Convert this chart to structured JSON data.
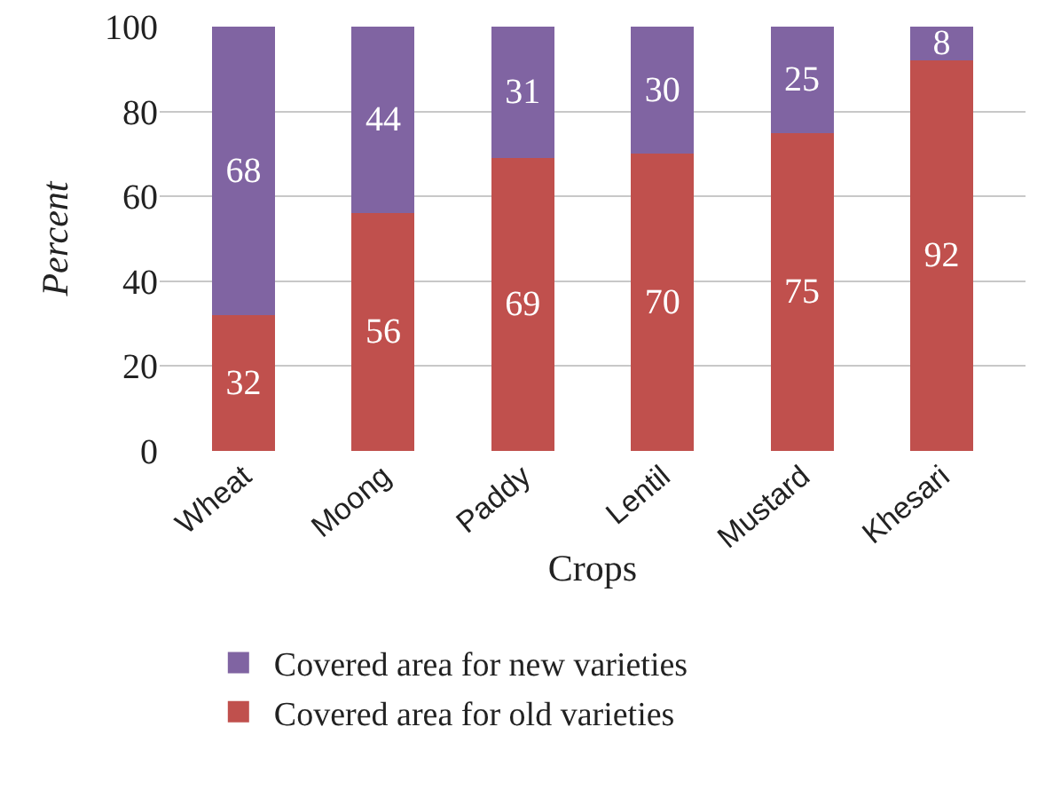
{
  "chart_data": {
    "type": "bar",
    "stacked": true,
    "xlabel": "Crops",
    "ylabel": "Percent",
    "categories": [
      "Wheat",
      "Moong",
      "Paddy",
      "Lentil",
      "Mustard",
      "Khesari"
    ],
    "series": [
      {
        "name": "Covered area for old varieties",
        "color": "#c0504d",
        "values": [
          32,
          56,
          69,
          70,
          75,
          92
        ]
      },
      {
        "name": "Covered area for new varieties",
        "color": "#8064a2",
        "values": [
          68,
          44,
          31,
          30,
          25,
          8
        ]
      }
    ],
    "ylim": [
      0,
      100
    ],
    "yticks": [
      0,
      20,
      40,
      60,
      80,
      100
    ],
    "grid": "y",
    "legend": "bottom",
    "data_labels": true
  }
}
